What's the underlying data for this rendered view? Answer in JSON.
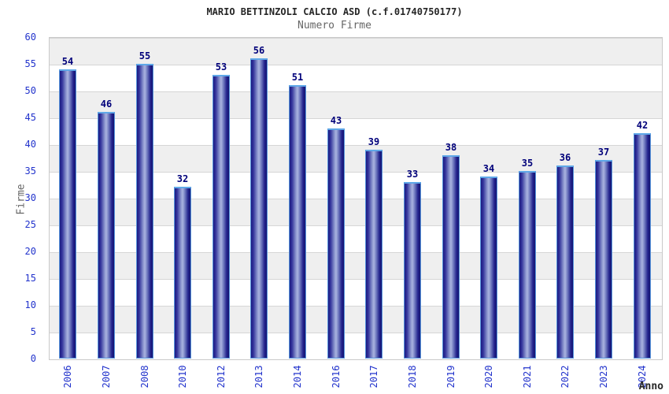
{
  "chart_data": {
    "type": "bar",
    "title": "MARIO BETTINZOLI CALCIO ASD (c.f.01740750177)",
    "subtitle": "Numero Firme",
    "xlabel": "Anno",
    "ylabel": "Firme",
    "categories": [
      "2006",
      "2007",
      "2008",
      "2010",
      "2012",
      "2013",
      "2014",
      "2016",
      "2017",
      "2018",
      "2019",
      "2020",
      "2021",
      "2022",
      "2023",
      "2024"
    ],
    "values": [
      54,
      46,
      55,
      32,
      53,
      56,
      51,
      43,
      39,
      33,
      38,
      34,
      35,
      36,
      37,
      42
    ],
    "ylim": [
      0,
      60
    ],
    "ytick_step": 5,
    "grid": "horizontal gridlines with alternating gray/white bands every 5 units",
    "legend": "none",
    "bar_style": "3D cylinder gradient, navy edges with light periwinkle center and light-blue top cap",
    "x_label_rotation": 90
  },
  "colors": {
    "tick_blue": "#2233cc",
    "value_navy": "#00007a",
    "title_color": "#262626",
    "subtitle_gray": "#666666",
    "band_gray": "#efefef",
    "gridline": "#d6d6d6",
    "plot_border": "#c9c9c9",
    "bar_dark": "#1b1b82",
    "bar_light": "#aab3e0",
    "bar_dark2": "#141470",
    "bar_border": "#5795dc",
    "bar_cap": "#5fa8e8"
  }
}
